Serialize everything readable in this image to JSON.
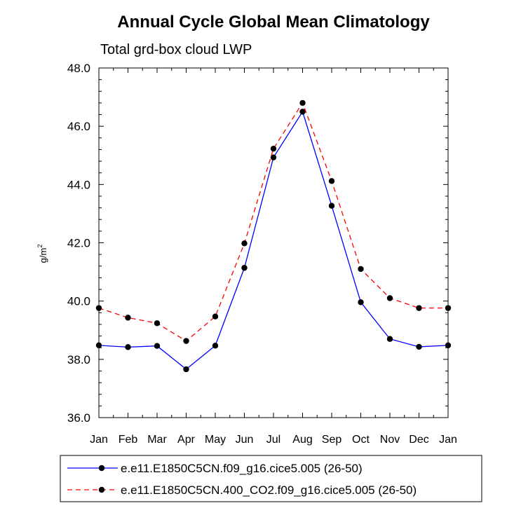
{
  "chart_data": {
    "type": "line",
    "title": "Annual Cycle Global Mean Climatology",
    "subtitle": "Total grd-box cloud LWP",
    "ylabel_base": "g/m",
    "ylabel_exp": "2",
    "ylim": [
      36.0,
      48.0
    ],
    "yticks": [
      "36.0",
      "38.0",
      "40.0",
      "42.0",
      "44.0",
      "46.0",
      "48.0"
    ],
    "categories": [
      "Jan",
      "Feb",
      "Mar",
      "Apr",
      "May",
      "Jun",
      "Jul",
      "Aug",
      "Sep",
      "Oct",
      "Nov",
      "Dec",
      "Jan"
    ],
    "series": [
      {
        "name": "e.e11.E1850C5CN.f09_g16.cice5.005 (26-50)",
        "color": "#0000ff",
        "dash": "solid",
        "values": [
          38.48,
          38.42,
          38.46,
          37.66,
          38.47,
          41.14,
          44.93,
          46.5,
          43.27,
          39.96,
          38.7,
          38.43,
          38.48
        ]
      },
      {
        "name": "e.e11.E1850C5CN.400_CO2.f09_g16.cice5.005 (26-50)",
        "color": "#ff0000",
        "dash": "dashed",
        "values": [
          39.76,
          39.43,
          39.24,
          38.63,
          39.47,
          41.98,
          45.23,
          46.8,
          44.12,
          41.1,
          40.1,
          39.76,
          39.76
        ]
      }
    ]
  }
}
